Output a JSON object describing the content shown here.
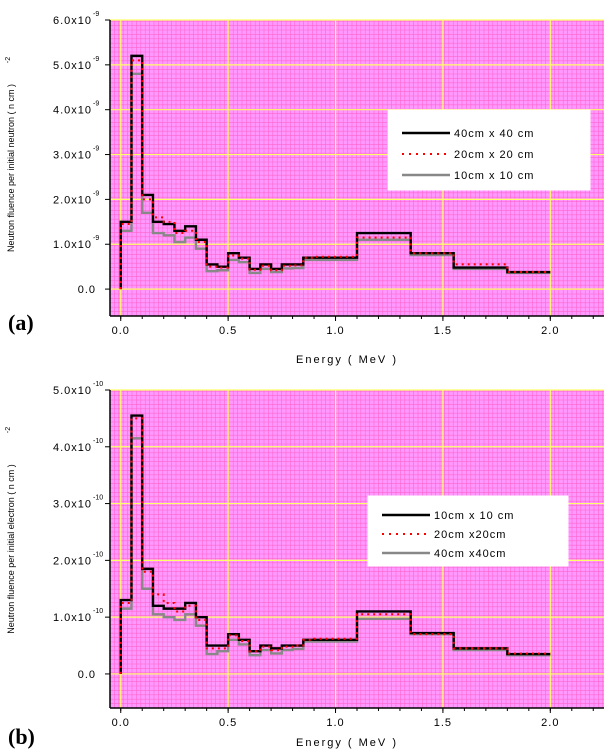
{
  "colors": {
    "plot_background": "#ff99ff",
    "minor_grid": "#ff66cc",
    "major_grid": "#ffff66",
    "series_black": "#000000",
    "series_red": "#ff0000",
    "series_gray": "#888888"
  },
  "chart_data": [
    {
      "panel_label": "(a)",
      "type": "line",
      "step": true,
      "grid": true,
      "legend_position": "upper-right",
      "xlabel": "Energy  ( MeV )",
      "ylabel": "Neutron fluence per initial neutron  ( n cm  )",
      "ylabel_exponent": "-2",
      "xlim": [
        -0.05,
        2.25
      ],
      "ylim": [
        -6e-10,
        6e-09
      ],
      "x_ticks": [
        0.0,
        0.5,
        1.0,
        1.5,
        2.0
      ],
      "x_tick_labels": [
        "0.0",
        "0.5",
        "1.0",
        "1.5",
        "2.0"
      ],
      "y_ticks": [
        0.0,
        1e-09,
        2e-09,
        3e-09,
        4e-09,
        5e-09,
        6e-09
      ],
      "y_tick_labels": [
        "0.0",
        "1.0x10",
        "2.0x10",
        "3.0x10",
        "4.0x10",
        "5.0x10",
        "6.0x10"
      ],
      "y_tick_exponents": [
        "",
        "-9",
        "-9",
        "-9",
        "-9",
        "-9",
        "-9"
      ],
      "bin_edges": [
        0,
        0.05,
        0.1,
        0.15,
        0.2,
        0.25,
        0.3,
        0.35,
        0.4,
        0.45,
        0.5,
        0.55,
        0.6,
        0.65,
        0.7,
        0.75,
        0.8,
        0.85,
        0.9,
        1.1,
        1.35,
        1.55,
        1.8,
        2.0
      ],
      "series": [
        {
          "name": "40cm  x 40 cm",
          "color": "#000000",
          "dash": "solid",
          "values": [
            1.5e-09,
            5.2e-09,
            2.1e-09,
            1.5e-09,
            1.45e-09,
            1.3e-09,
            1.4e-09,
            1.1e-09,
            5.5e-10,
            5e-10,
            8e-10,
            7e-10,
            4.5e-10,
            5.5e-10,
            4.5e-10,
            5.5e-10,
            5.5e-10,
            7e-10,
            7e-10,
            1.25e-09,
            8e-10,
            4.8e-10,
            3.8e-10
          ]
        },
        {
          "name": "20cm  x 20 cm",
          "color": "#ff0000",
          "dash": "dotted",
          "values": [
            1.45e-09,
            5.1e-09,
            2e-09,
            1.6e-09,
            1.5e-09,
            1.25e-09,
            1.3e-09,
            1.05e-09,
            5e-10,
            4.8e-10,
            7.5e-10,
            6.8e-10,
            4.3e-10,
            5.2e-10,
            4.2e-10,
            5.2e-10,
            5.3e-10,
            7e-10,
            7.2e-10,
            1.15e-09,
            8e-10,
            5.5e-10,
            3.8e-10
          ]
        },
        {
          "name": "10cm  x 10 cm",
          "color": "#888888",
          "dash": "solid",
          "values": [
            1.3e-09,
            4.8e-09,
            1.7e-09,
            1.25e-09,
            1.2e-09,
            1.05e-09,
            1.15e-09,
            9e-10,
            4e-10,
            4.2e-10,
            6.5e-10,
            6e-10,
            3.6e-10,
            4.5e-10,
            3.8e-10,
            4.6e-10,
            4.7e-10,
            6.5e-10,
            6.5e-10,
            1.1e-09,
            7.6e-10,
            4.5e-10,
            3.6e-10
          ]
        }
      ]
    },
    {
      "panel_label": "(b)",
      "type": "line",
      "step": true,
      "grid": true,
      "legend_position": "upper-right",
      "xlabel": "Energy  ( MeV )",
      "ylabel": "Neutron fluence per initial electron  ( n cm  )",
      "ylabel_exponent": "-2",
      "xlim": [
        -0.05,
        2.25
      ],
      "ylim": [
        -6e-11,
        5e-10
      ],
      "x_ticks": [
        0.0,
        0.5,
        1.0,
        1.5,
        2.0
      ],
      "x_tick_labels": [
        "0.0",
        "0.5",
        "1.0",
        "1.5",
        "2.0"
      ],
      "y_ticks": [
        0.0,
        1e-10,
        2e-10,
        3e-10,
        4e-10,
        5e-10
      ],
      "y_tick_labels": [
        "0.0",
        "1.0x10",
        "2.0x10",
        "3.0x10",
        "4.0x10",
        "5.0x10"
      ],
      "y_tick_exponents": [
        "",
        "-10",
        "-10",
        "-10",
        "-10",
        "-10"
      ],
      "bin_edges": [
        0,
        0.05,
        0.1,
        0.15,
        0.2,
        0.25,
        0.3,
        0.35,
        0.4,
        0.45,
        0.5,
        0.55,
        0.6,
        0.65,
        0.7,
        0.75,
        0.8,
        0.85,
        0.9,
        1.1,
        1.35,
        1.55,
        1.8,
        2.0
      ],
      "series": [
        {
          "name": "10cm   x 10 cm",
          "color": "#000000",
          "dash": "solid",
          "values": [
            1.3e-10,
            4.55e-10,
            1.85e-10,
            1.2e-10,
            1.15e-10,
            1.15e-10,
            1.25e-10,
            1e-10,
            5e-11,
            5e-11,
            7e-11,
            6e-11,
            4e-11,
            5e-11,
            4.5e-11,
            5e-11,
            5e-11,
            6e-11,
            6e-11,
            1.1e-10,
            7.2e-11,
            4.5e-11,
            3.5e-11
          ]
        },
        {
          "name": "20cm   x20cm",
          "color": "#ff0000",
          "dash": "dotted",
          "values": [
            1.25e-10,
            4.5e-10,
            1.8e-10,
            1.4e-10,
            1.25e-10,
            1.1e-10,
            1.2e-10,
            9.5e-11,
            4.5e-11,
            4.5e-11,
            6.8e-11,
            5.8e-11,
            4e-11,
            4.8e-11,
            4.2e-11,
            4.8e-11,
            5e-11,
            6e-11,
            6.2e-11,
            1.05e-10,
            7e-11,
            4.5e-11,
            3.6e-11
          ]
        },
        {
          "name": "40cm   x40cm",
          "color": "#888888",
          "dash": "solid",
          "values": [
            1.15e-10,
            4.15e-10,
            1.5e-10,
            1.05e-10,
            1e-10,
            9.5e-11,
            1.05e-10,
            8.5e-11,
            3.5e-11,
            4e-11,
            6e-11,
            5.2e-11,
            3.3e-11,
            4.2e-11,
            3.6e-11,
            4.2e-11,
            4.4e-11,
            5.7e-11,
            5.7e-11,
            9.7e-11,
            7e-11,
            4.2e-11,
            3.3e-11
          ]
        }
      ]
    }
  ]
}
